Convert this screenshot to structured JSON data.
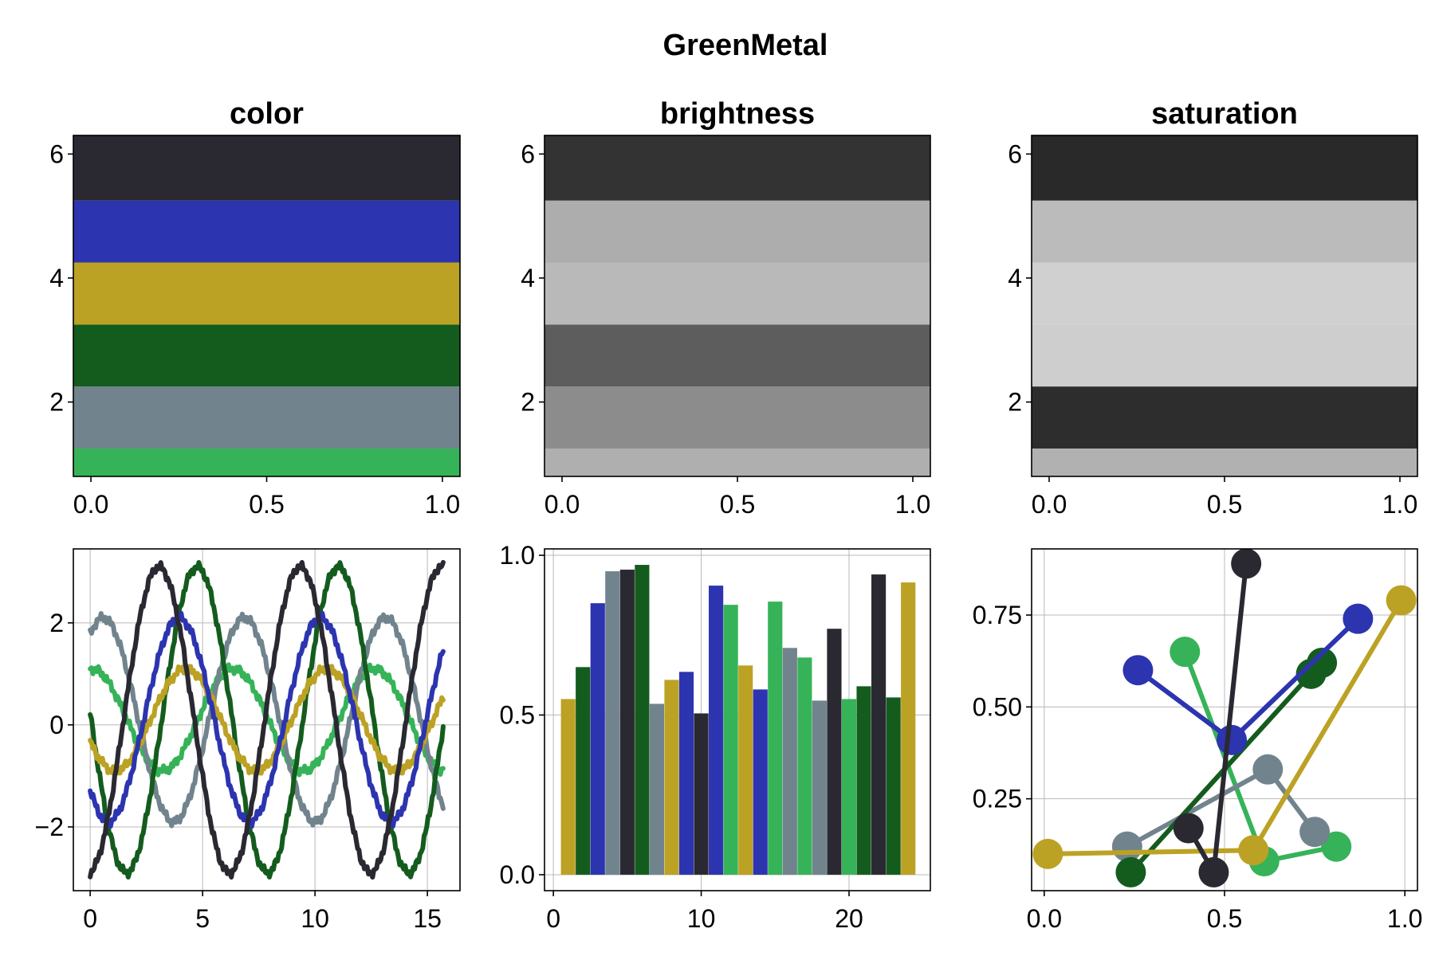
{
  "figure": {
    "title": "GreenMetal"
  },
  "colors": {
    "c1": "#36b358",
    "c2": "#71848e",
    "c3": "#145c1e",
    "c4": "#bca224",
    "c5": "#2c34b0",
    "c6": "#2a2932"
  },
  "chart_data": [
    {
      "type": "bar",
      "panel": "color",
      "title": "color",
      "orientation": "horizontal-bands",
      "bands": [
        {
          "from": 0.8,
          "to": 1.25,
          "color": "#36b358"
        },
        {
          "from": 1.25,
          "to": 2.25,
          "color": "#71848e"
        },
        {
          "from": 2.25,
          "to": 3.25,
          "color": "#145c1e"
        },
        {
          "from": 3.25,
          "to": 4.25,
          "color": "#bca224"
        },
        {
          "from": 4.25,
          "to": 5.25,
          "color": "#2c34b0"
        },
        {
          "from": 5.25,
          "to": 6.3,
          "color": "#2a2932"
        }
      ],
      "xlim": [
        -0.05,
        1.05
      ],
      "ylim": [
        0.8,
        6.3
      ],
      "xticks": [
        "0.0",
        "0.5",
        "1.0"
      ],
      "xtick_values": [
        0,
        0.5,
        1
      ],
      "yticks": [
        "2",
        "4",
        "6"
      ],
      "ytick_values": [
        2,
        4,
        6
      ],
      "grid": false
    },
    {
      "type": "bar",
      "panel": "brightness",
      "title": "brightness",
      "orientation": "horizontal-bands",
      "bands": [
        {
          "from": 0.8,
          "to": 1.25,
          "color": "#afafaf"
        },
        {
          "from": 1.25,
          "to": 2.25,
          "color": "#8c8c8c"
        },
        {
          "from": 2.25,
          "to": 3.25,
          "color": "#5d5d5d"
        },
        {
          "from": 3.25,
          "to": 4.25,
          "color": "#b9b9b9"
        },
        {
          "from": 4.25,
          "to": 5.25,
          "color": "#adadad"
        },
        {
          "from": 5.25,
          "to": 6.3,
          "color": "#333333"
        }
      ],
      "xlim": [
        -0.05,
        1.05
      ],
      "ylim": [
        0.8,
        6.3
      ],
      "xticks": [
        "0.0",
        "0.5",
        "1.0"
      ],
      "xtick_values": [
        0,
        0.5,
        1
      ],
      "yticks": [
        "2",
        "4",
        "6"
      ],
      "ytick_values": [
        2,
        4,
        6
      ],
      "grid": false
    },
    {
      "type": "bar",
      "panel": "saturation",
      "title": "saturation",
      "orientation": "horizontal-bands",
      "bands": [
        {
          "from": 0.8,
          "to": 1.25,
          "color": "#b1b1b1"
        },
        {
          "from": 1.25,
          "to": 2.25,
          "color": "#2d2d2d"
        },
        {
          "from": 2.25,
          "to": 3.25,
          "color": "#cecece"
        },
        {
          "from": 3.25,
          "to": 4.25,
          "color": "#d0d0d0"
        },
        {
          "from": 4.25,
          "to": 5.25,
          "color": "#bbbbbb"
        },
        {
          "from": 5.25,
          "to": 6.3,
          "color": "#292929"
        }
      ],
      "xlim": [
        -0.05,
        1.05
      ],
      "ylim": [
        0.8,
        6.3
      ],
      "xticks": [
        "0.0",
        "0.5",
        "1.0"
      ],
      "xtick_values": [
        0,
        0.5,
        1
      ],
      "yticks": [
        "2",
        "4",
        "6"
      ],
      "ytick_values": [
        2,
        4,
        6
      ],
      "grid": false
    },
    {
      "type": "line",
      "panel": "lines",
      "x_range": [
        0,
        15.7
      ],
      "series": [
        {
          "color": "#36b358",
          "amp": 1.0,
          "offset": 0.1,
          "phase": 1.5
        },
        {
          "color": "#71848e",
          "amp": 2.0,
          "offset": 0.1,
          "phase": 1.0
        },
        {
          "color": "#145c1e",
          "amp": 3.0,
          "offset": 0.1,
          "phase": 3.1
        },
        {
          "color": "#bca224",
          "amp": 1.0,
          "offset": 0.1,
          "phase": 3.6
        },
        {
          "color": "#2c34b0",
          "amp": 2.0,
          "offset": 0.1,
          "phase": 3.9
        },
        {
          "color": "#2a2932",
          "amp": 3.0,
          "offset": 0.1,
          "phase": 4.8
        }
      ],
      "xlim": [
        -0.75,
        16.45
      ],
      "ylim": [
        -3.25,
        3.45
      ],
      "xticks": [
        "0",
        "5",
        "10",
        "15"
      ],
      "xtick_values": [
        0,
        5,
        10,
        15
      ],
      "yticks": [
        "−2",
        "0",
        "2"
      ],
      "ytick_values": [
        -2,
        0,
        2
      ],
      "grid": true
    },
    {
      "type": "bar",
      "panel": "bars",
      "categories": [
        1,
        2,
        3,
        4,
        5,
        6,
        7,
        8,
        9,
        10,
        11,
        12,
        13,
        14,
        15,
        16,
        17,
        18,
        19,
        20,
        21,
        22,
        23,
        24
      ],
      "values": [
        0.55,
        0.65,
        0.85,
        0.95,
        0.955,
        0.97,
        0.535,
        0.61,
        0.635,
        0.505,
        0.905,
        0.845,
        0.655,
        0.58,
        0.855,
        0.71,
        0.68,
        0.545,
        0.77,
        0.55,
        0.59,
        0.94,
        0.555,
        0.915
      ],
      "bar_colors": [
        "#bca224",
        "#145c1e",
        "#2c34b0",
        "#71848e",
        "#2a2932",
        "#145c1e",
        "#71848e",
        "#bca224",
        "#2c34b0",
        "#2a2932",
        "#2c34b0",
        "#36b358",
        "#bca224",
        "#2c34b0",
        "#36b358",
        "#71848e",
        "#36b358",
        "#71848e",
        "#2a2932",
        "#36b358",
        "#145c1e",
        "#2a2932",
        "#145c1e",
        "#bca224"
      ],
      "xlim": [
        -0.6,
        25.5
      ],
      "ylim": [
        -0.05,
        1.02
      ],
      "xticks": [
        "0",
        "10",
        "20"
      ],
      "xtick_values": [
        0,
        10,
        20
      ],
      "yticks": [
        "0.0",
        "0.5",
        "1.0"
      ],
      "ytick_values": [
        0,
        0.5,
        1.0
      ],
      "grid": true
    },
    {
      "type": "scatter",
      "panel": "scatter-lines",
      "series": [
        {
          "color": "#36b358",
          "points": [
            [
              0.39,
              0.65
            ],
            [
              0.61,
              0.08
            ],
            [
              0.81,
              0.12
            ]
          ]
        },
        {
          "color": "#71848e",
          "points": [
            [
              0.23,
              0.12
            ],
            [
              0.62,
              0.33
            ],
            [
              0.75,
              0.16
            ]
          ]
        },
        {
          "color": "#145c1e",
          "points": [
            [
              0.24,
              0.05
            ],
            [
              0.74,
              0.59
            ],
            [
              0.77,
              0.62
            ]
          ]
        },
        {
          "color": "#bca224",
          "points": [
            [
              0.01,
              0.1
            ],
            [
              0.58,
              0.11
            ],
            [
              0.99,
              0.79
            ]
          ]
        },
        {
          "color": "#2c34b0",
          "points": [
            [
              0.26,
              0.6
            ],
            [
              0.52,
              0.41
            ],
            [
              0.87,
              0.74
            ]
          ]
        },
        {
          "color": "#2a2932",
          "points": [
            [
              0.4,
              0.17
            ],
            [
              0.47,
              0.05
            ],
            [
              0.56,
              0.89
            ]
          ]
        }
      ],
      "xlim": [
        -0.035,
        1.035
      ],
      "ylim": [
        0.0,
        0.93
      ],
      "xticks": [
        "0.0",
        "0.5",
        "1.0"
      ],
      "xtick_values": [
        0,
        0.5,
        1.0
      ],
      "yticks": [
        "0.25",
        "0.50",
        "0.75"
      ],
      "ytick_values": [
        0.25,
        0.5,
        0.75
      ],
      "grid": true
    }
  ]
}
